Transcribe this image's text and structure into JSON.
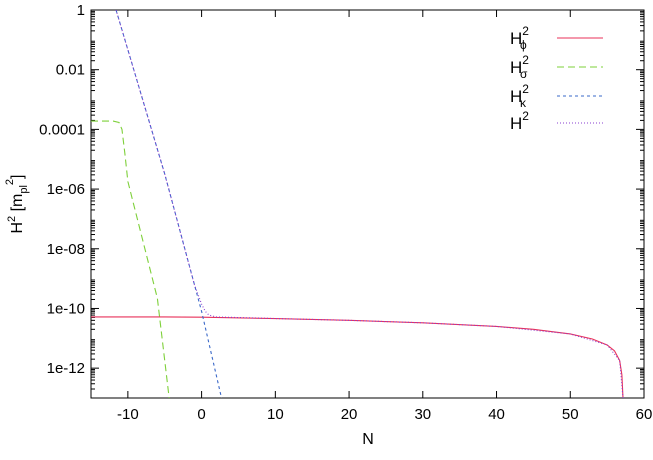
{
  "chart_data": {
    "type": "line",
    "xlabel": "N",
    "ylabel": {
      "base": "H",
      "exp": "2",
      "unit_open": " [m",
      "unit_sub": "pl",
      "unit_exp": "2",
      "unit_close": "]"
    },
    "xlim": [
      -15,
      60
    ],
    "ylim": [
      1e-13,
      1
    ],
    "yscale": "log",
    "grid": false,
    "legend_position": "top-right",
    "x_ticks": [
      {
        "value": -10,
        "label": "-10"
      },
      {
        "value": 0,
        "label": "0"
      },
      {
        "value": 10,
        "label": "10"
      },
      {
        "value": 20,
        "label": "20"
      },
      {
        "value": 30,
        "label": "30"
      },
      {
        "value": 40,
        "label": "40"
      },
      {
        "value": 50,
        "label": "50"
      },
      {
        "value": 60,
        "label": "60"
      }
    ],
    "y_ticks": [
      {
        "value": 1,
        "label": "1"
      },
      {
        "value": 0.01,
        "label": "0.01"
      },
      {
        "value": 0.0001,
        "label": "0.0001"
      },
      {
        "value": 1e-06,
        "label": "1e-06"
      },
      {
        "value": 1e-08,
        "label": "1e-08"
      },
      {
        "value": 1e-10,
        "label": "1e-10"
      },
      {
        "value": 1e-12,
        "label": "1e-12"
      }
    ],
    "series": [
      {
        "name": "H2_phi",
        "legend": {
          "base": "H",
          "sup": "2",
          "sub": "ϕ"
        },
        "color": "#e8315a",
        "dash": "",
        "points": [
          [
            -15,
            5.2e-11
          ],
          [
            -5,
            5.2e-11
          ],
          [
            0,
            5.1e-11
          ],
          [
            10,
            4.6e-11
          ],
          [
            20,
            4e-11
          ],
          [
            30,
            3.3e-11
          ],
          [
            40,
            2.5e-11
          ],
          [
            45,
            2e-11
          ],
          [
            50,
            1.4e-11
          ],
          [
            53,
            9.5e-12
          ],
          [
            55,
            6e-12
          ],
          [
            56,
            3.8e-12
          ],
          [
            56.7,
            1.8e-12
          ],
          [
            57.0,
            6e-13
          ],
          [
            57.15,
            1e-13
          ]
        ]
      },
      {
        "name": "H2_sigma",
        "legend": {
          "base": "H",
          "sup": "2",
          "sub": "σ"
        },
        "color": "#7ed03a",
        "dash": "7,4",
        "points": [
          [
            -15,
            0.00019
          ],
          [
            -12,
            0.00019
          ],
          [
            -11.2,
            0.00017
          ],
          [
            -10.8,
            0.0001
          ],
          [
            -10.4,
            1.5e-05
          ],
          [
            -10,
            1.8e-06
          ],
          [
            -8,
            2e-08
          ],
          [
            -6,
            2.2e-10
          ],
          [
            -4.4,
            1e-13
          ]
        ]
      },
      {
        "name": "H2_kappa",
        "legend": {
          "base": "H",
          "sup": "2",
          "sub": "κ"
        },
        "color": "#3a68c8",
        "dash": "3,3",
        "points": [
          [
            -11.6,
            1.0
          ],
          [
            -5,
            3.2e-06
          ],
          [
            0,
            8e-11
          ],
          [
            2.7,
            1e-13
          ]
        ]
      },
      {
        "name": "H2",
        "legend": {
          "base": "H",
          "sup": "2",
          "sub": ""
        },
        "color": "#8a3fd1",
        "dash": "1,2",
        "points": [
          [
            -11.6,
            1.0
          ],
          [
            -5,
            3.2e-06
          ],
          [
            -1,
            6.5e-10
          ],
          [
            0,
            1.4e-10
          ],
          [
            0.5,
            8e-11
          ],
          [
            1,
            6e-11
          ],
          [
            2,
            5.2e-11
          ],
          [
            10,
            4.6e-11
          ],
          [
            20,
            4e-11
          ],
          [
            30,
            3.3e-11
          ],
          [
            40,
            2.5e-11
          ],
          [
            50,
            1.4e-11
          ],
          [
            55,
            6e-12
          ],
          [
            56.7,
            1.8e-12
          ],
          [
            57.15,
            1e-13
          ]
        ]
      }
    ]
  }
}
